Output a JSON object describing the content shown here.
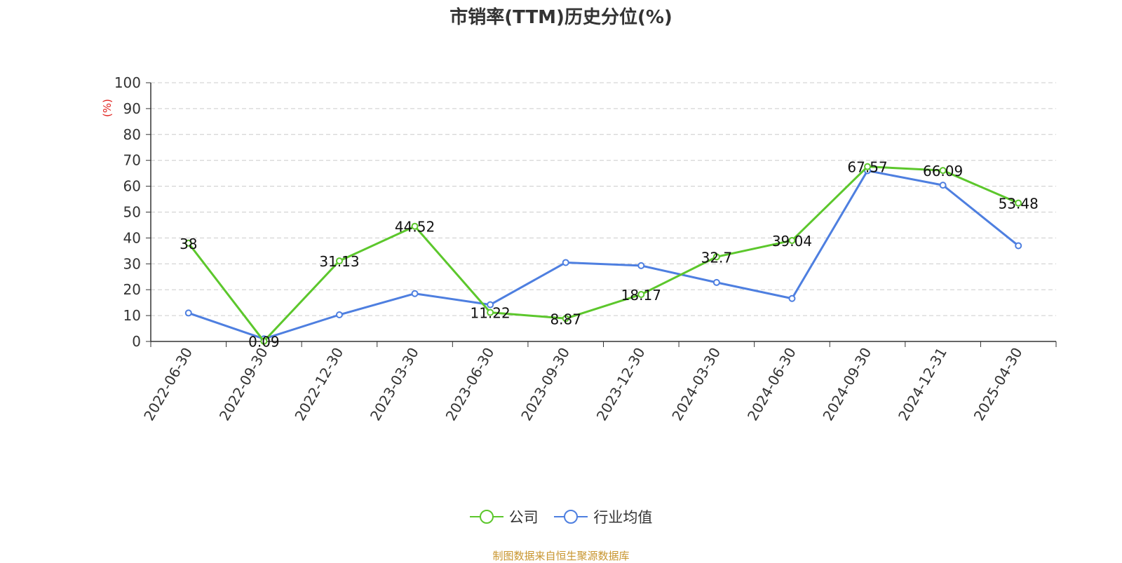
{
  "chart_data": {
    "type": "line",
    "title": "市销率(TTM)历史分位(%)",
    "ylabel": "(%)",
    "xlabel": "",
    "ylim": [
      0,
      100
    ],
    "yticks": [
      0,
      10,
      20,
      30,
      40,
      50,
      60,
      70,
      80,
      90,
      100
    ],
    "grid": true,
    "legend_position": "bottom",
    "categories": [
      "2022-06-30",
      "2022-09-30",
      "2022-12-30",
      "2023-03-30",
      "2023-06-30",
      "2023-09-30",
      "2023-12-30",
      "2024-03-30",
      "2024-06-30",
      "2024-09-30",
      "2024-12-31",
      "2025-04-30"
    ],
    "series": [
      {
        "name": "公司",
        "color": "#5cc72c",
        "values": [
          38,
          0.09,
          31.13,
          44.52,
          11.22,
          8.87,
          18.17,
          32.7,
          39.04,
          67.57,
          66.09,
          53.48
        ],
        "labels": [
          "38",
          "0.09",
          "31.13",
          "44.52",
          "11.22",
          "8.87",
          "18.17",
          "32.7",
          "39.04",
          "67.57",
          "66.09",
          "53.48"
        ]
      },
      {
        "name": "行业均值",
        "color": "#4e7fe0",
        "values": [
          11,
          1,
          10.3,
          18.5,
          14.2,
          30.5,
          29.3,
          22.8,
          16.6,
          66,
          60.4,
          37
        ]
      }
    ]
  },
  "colors": {
    "unit_label": "#e0201c",
    "source_note": "#c8952e",
    "axis": "#333333",
    "grid": "#cccccc"
  },
  "source_note": "制图数据来自恒生聚源数据库"
}
